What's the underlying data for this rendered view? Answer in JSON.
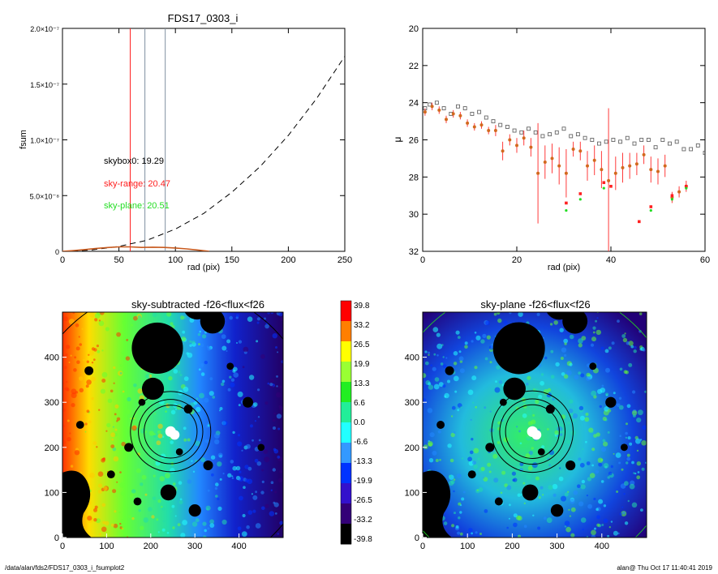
{
  "title": "FDS17_0303_i",
  "footer": {
    "left": "/data/alan/fds2/FDS17_0303_i_fsumplot2",
    "right": "alan@  Thu Oct 17 11:40:41 2019"
  },
  "annotations": {
    "skybox": "skybox0: 19.29",
    "skyrange": "sky-range: 20.47",
    "skyplane": "sky-plane: 20.51"
  },
  "colors": {
    "skybox": "#000000",
    "skyrange": "#ff2020",
    "skyplane": "#22dd22",
    "growth_curve": "#c85a1e",
    "points": "#d2691e",
    "errorbars": "#ff3b3b"
  },
  "colorbar": {
    "labels": [
      "39.8",
      "33.2",
      "26.5",
      "19.9",
      "13.3",
      "6.6",
      "0.0",
      "-6.6",
      "-13.3",
      "-19.9",
      "-26.5",
      "-33.2",
      "-39.8"
    ],
    "colors": [
      "#ff0000",
      "#ff7f00",
      "#ffff00",
      "#99ff33",
      "#22ee22",
      "#22ee99",
      "#22ffff",
      "#3399ff",
      "#0033ff",
      "#3311cc",
      "#330077",
      "#000000"
    ]
  },
  "chart_data": [
    {
      "type": "line",
      "title": "FDS17_0303_i",
      "xlabel": "rad (pix)",
      "ylabel": "fsum",
      "xlim": [
        0,
        250
      ],
      "ylim": [
        0,
        2e-07
      ],
      "xticks": [
        0,
        50,
        100,
        150,
        200,
        250
      ],
      "yticks": [
        "0",
        "5.0×10⁻⁸",
        "1.0×10⁻⁷",
        "1.5×10⁻⁷",
        "2.0×10⁻⁷"
      ],
      "vlines": [
        {
          "x": 60,
          "color": "#ff2020"
        },
        {
          "x": 73,
          "color": "#8090a0"
        },
        {
          "x": 91,
          "color": "#8090a0"
        }
      ],
      "series": [
        {
          "style": "dashed",
          "x": [
            0,
            25,
            50,
            75,
            100,
            125,
            150,
            175,
            200,
            225,
            250
          ],
          "y": [
            0,
            1.1e-09,
            4.4e-09,
            1e-08,
            2e-08,
            3.4e-08,
            5.3e-08,
            7.6e-08,
            1.04e-07,
            1.37e-07,
            1.75e-07
          ]
        },
        {
          "style": "solid",
          "x": [
            0,
            10,
            20,
            30,
            40,
            50,
            60,
            70,
            80,
            90,
            100,
            110,
            120,
            130
          ],
          "y": [
            0,
            7e-10,
            1.6e-09,
            2.6e-09,
            3.4e-09,
            4e-09,
            4e-09,
            3.5e-09,
            3.7e-09,
            3.5e-09,
            3e-09,
            2.2e-09,
            1.2e-09,
            0
          ]
        }
      ]
    },
    {
      "type": "scatter",
      "xlabel": "rad (pix)",
      "ylabel": "μ",
      "xlim": [
        0,
        60
      ],
      "ylim": [
        32,
        20
      ],
      "xticks": [
        0,
        20,
        40,
        60
      ],
      "yticks": [
        20,
        22,
        24,
        26,
        28,
        30,
        32
      ],
      "series": [
        {
          "marker": "square-open",
          "x": [
            0.5,
            1.5,
            3,
            4.5,
            6,
            7.5,
            9,
            10.5,
            12,
            13.5,
            15,
            16.5,
            18,
            19.5,
            21,
            22.5,
            24,
            25.5,
            27,
            28.5,
            30,
            31.5,
            33,
            34.5,
            36,
            37.5,
            39,
            40.5,
            42,
            43.5,
            45,
            46.5,
            48,
            49.5,
            51,
            52.5,
            54,
            55.5,
            57,
            58.5,
            60
          ],
          "y": [
            24.3,
            24.1,
            24.0,
            24.3,
            24.6,
            24.2,
            24.3,
            24.6,
            24.5,
            24.8,
            25.0,
            25.2,
            25.3,
            25.5,
            25.6,
            25.4,
            25.6,
            25.8,
            25.7,
            25.6,
            25.4,
            25.8,
            25.7,
            25.9,
            26.0,
            26.2,
            26.1,
            26.0,
            26.1,
            25.9,
            26.2,
            26.0,
            26.0,
            26.4,
            26.0,
            26.2,
            26.1,
            26.5,
            26.5,
            26.3,
            26.7
          ]
        },
        {
          "marker": "dot",
          "x": [
            0.5,
            2,
            3.5,
            5,
            6.5,
            8,
            9.5,
            11,
            12.5,
            14,
            15.5,
            17,
            18.5,
            20,
            21.5,
            23,
            24.5,
            26,
            27.5,
            29,
            30.5,
            32,
            33.5,
            35,
            36.5,
            38,
            39.5,
            41,
            42.5,
            44,
            45.5,
            47,
            48.5,
            50,
            51.5,
            53,
            54.5,
            56
          ],
          "y": [
            24.5,
            24.2,
            24.4,
            24.9,
            24.6,
            24.7,
            25.1,
            25.3,
            25.2,
            25.5,
            25.5,
            26.6,
            26.0,
            26.3,
            25.9,
            26.4,
            27.8,
            27.2,
            27.0,
            27.4,
            27.8,
            26.5,
            26.6,
            27.4,
            27.1,
            27.6,
            28.2,
            27.8,
            27.5,
            27.4,
            27.3,
            26.8,
            27.6,
            27.7,
            27.4,
            29.1,
            28.8,
            28.5
          ],
          "err": [
            0.2,
            0.2,
            0.2,
            0.2,
            0.2,
            0.2,
            0.2,
            0.2,
            0.2,
            0.2,
            0.3,
            0.5,
            0.3,
            0.4,
            0.4,
            0.5,
            2.7,
            0.9,
            0.8,
            1.0,
            1.3,
            0.4,
            0.5,
            0.8,
            0.8,
            1.0,
            3.9,
            0.9,
            0.8,
            0.7,
            0.6,
            0.5,
            0.7,
            0.7,
            0.6,
            0.3,
            0.3,
            0.3
          ]
        },
        {
          "marker": "square-red",
          "x": [
            30.5,
            33.5,
            38.5,
            40,
            46,
            48.5,
            53,
            56
          ],
          "y": [
            29.4,
            28.9,
            28.3,
            28.5,
            30.4,
            29.6,
            29.0,
            28.5
          ]
        },
        {
          "marker": "dot-green",
          "x": [
            30.5,
            33.5,
            38.5,
            48.5,
            53,
            56
          ],
          "y": [
            29.8,
            29.2,
            28.6,
            29.8,
            29.2,
            28.6
          ]
        }
      ]
    },
    {
      "type": "heatmap",
      "title": "sky-subtracted -f26<flux<f26",
      "xlim": [
        0,
        500
      ],
      "ylim": [
        0,
        500
      ],
      "xticks": [
        0,
        100,
        200,
        300,
        400
      ],
      "yticks": [
        0,
        100,
        200,
        300,
        400
      ],
      "center": [
        245,
        235
      ],
      "apertures_radii": [
        60,
        73,
        91,
        330
      ],
      "masked_sources": [
        {
          "x": 215,
          "y": 420,
          "r": 58
        },
        {
          "x": 205,
          "y": 330,
          "r": 25
        },
        {
          "x": 340,
          "y": 480,
          "r": 28
        },
        {
          "x": 305,
          "y": 515,
          "r": 32
        },
        {
          "x": 240,
          "y": 100,
          "r": 18
        },
        {
          "x": 300,
          "y": 60,
          "r": 14
        },
        {
          "x": 420,
          "y": 300,
          "r": 12
        },
        {
          "x": 60,
          "y": 370,
          "r": 10
        },
        {
          "x": 40,
          "y": 250,
          "r": 9
        },
        {
          "x": 150,
          "y": 200,
          "r": 10
        },
        {
          "x": 330,
          "y": 160,
          "r": 11
        },
        {
          "x": 110,
          "y": 140,
          "r": 9
        },
        {
          "x": 380,
          "y": 380,
          "r": 8
        },
        {
          "x": 170,
          "y": 80,
          "r": 9
        },
        {
          "x": 450,
          "y": 200,
          "r": 8
        },
        {
          "x": 285,
          "y": 285,
          "r": 10
        },
        {
          "x": 180,
          "y": 300,
          "r": 8
        },
        {
          "x": 265,
          "y": 190,
          "r": 8
        }
      ]
    },
    {
      "type": "heatmap",
      "title": "sky-plane -f26<flux<f26",
      "xlim": [
        0,
        500
      ],
      "ylim": [
        0,
        500
      ],
      "xticks": [
        0,
        100,
        200,
        300,
        400
      ],
      "yticks": [
        0,
        100,
        200,
        300,
        400
      ]
    }
  ]
}
